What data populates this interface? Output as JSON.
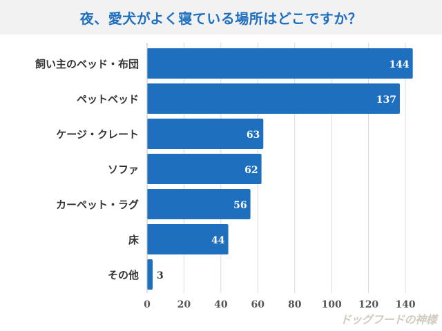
{
  "chart_data": {
    "type": "bar",
    "orientation": "horizontal",
    "title": "夜、愛犬がよく寝ている場所はどこですか？",
    "categories": [
      "飼い主のベッド・布団",
      "ペットベッド",
      "ケージ・クレート",
      "ソファ",
      "カーペット・ラグ",
      "床",
      "その他"
    ],
    "values": [
      144,
      137,
      63,
      62,
      56,
      44,
      3
    ],
    "xlim": [
      0,
      150
    ],
    "xticks": [
      0,
      20,
      40,
      60,
      80,
      100,
      120,
      140
    ],
    "xlabel": "",
    "ylabel": "",
    "grid": true,
    "bar_color": "#1f6fbf",
    "label_color_inside": "#ffffff",
    "label_color_outside": "#333333"
  },
  "watermark": "ドッグフードの神様"
}
